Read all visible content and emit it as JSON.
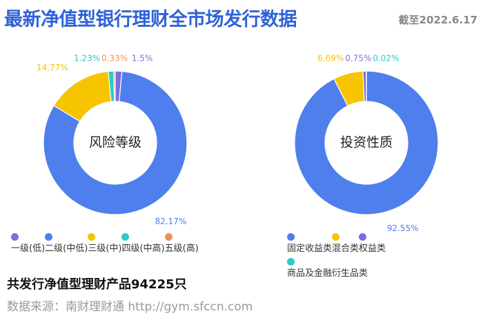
{
  "header": {
    "title": "最新净值型银行理财全市场发行数据",
    "date": "截至2022.6.17"
  },
  "chart_data": [
    {
      "type": "pie",
      "title": "风险等级",
      "categories": [
        "一级(低)",
        "二级(中低)",
        "三级(中)",
        "四级(中高)",
        "五级(高)"
      ],
      "values": [
        1.5,
        82.17,
        14.77,
        1.23,
        0.33
      ],
      "value_labels": [
        "1.5%",
        "82.17%",
        "14.77%",
        "1.23%",
        "0.33%"
      ],
      "colors": [
        "#7b6fe0",
        "#4f7fec",
        "#f7c400",
        "#2ec9c9",
        "#f2905a"
      ]
    },
    {
      "type": "pie",
      "title": "投资性质",
      "categories": [
        "固定收益类",
        "混合类",
        "权益类",
        "商品及金融衍生品类"
      ],
      "values": [
        92.55,
        6.69,
        0.75,
        0.02
      ],
      "value_labels": [
        "92.55%",
        "6.69%",
        "0.75%",
        "0.02%"
      ],
      "colors": [
        "#4f7fec",
        "#f7c400",
        "#7b6fe0",
        "#2ec9c9"
      ]
    }
  ],
  "footer": {
    "summary": "共发行净值型理财产品94225只",
    "source": "数据来源：南财理财通 http://gym.sfccn.com"
  }
}
